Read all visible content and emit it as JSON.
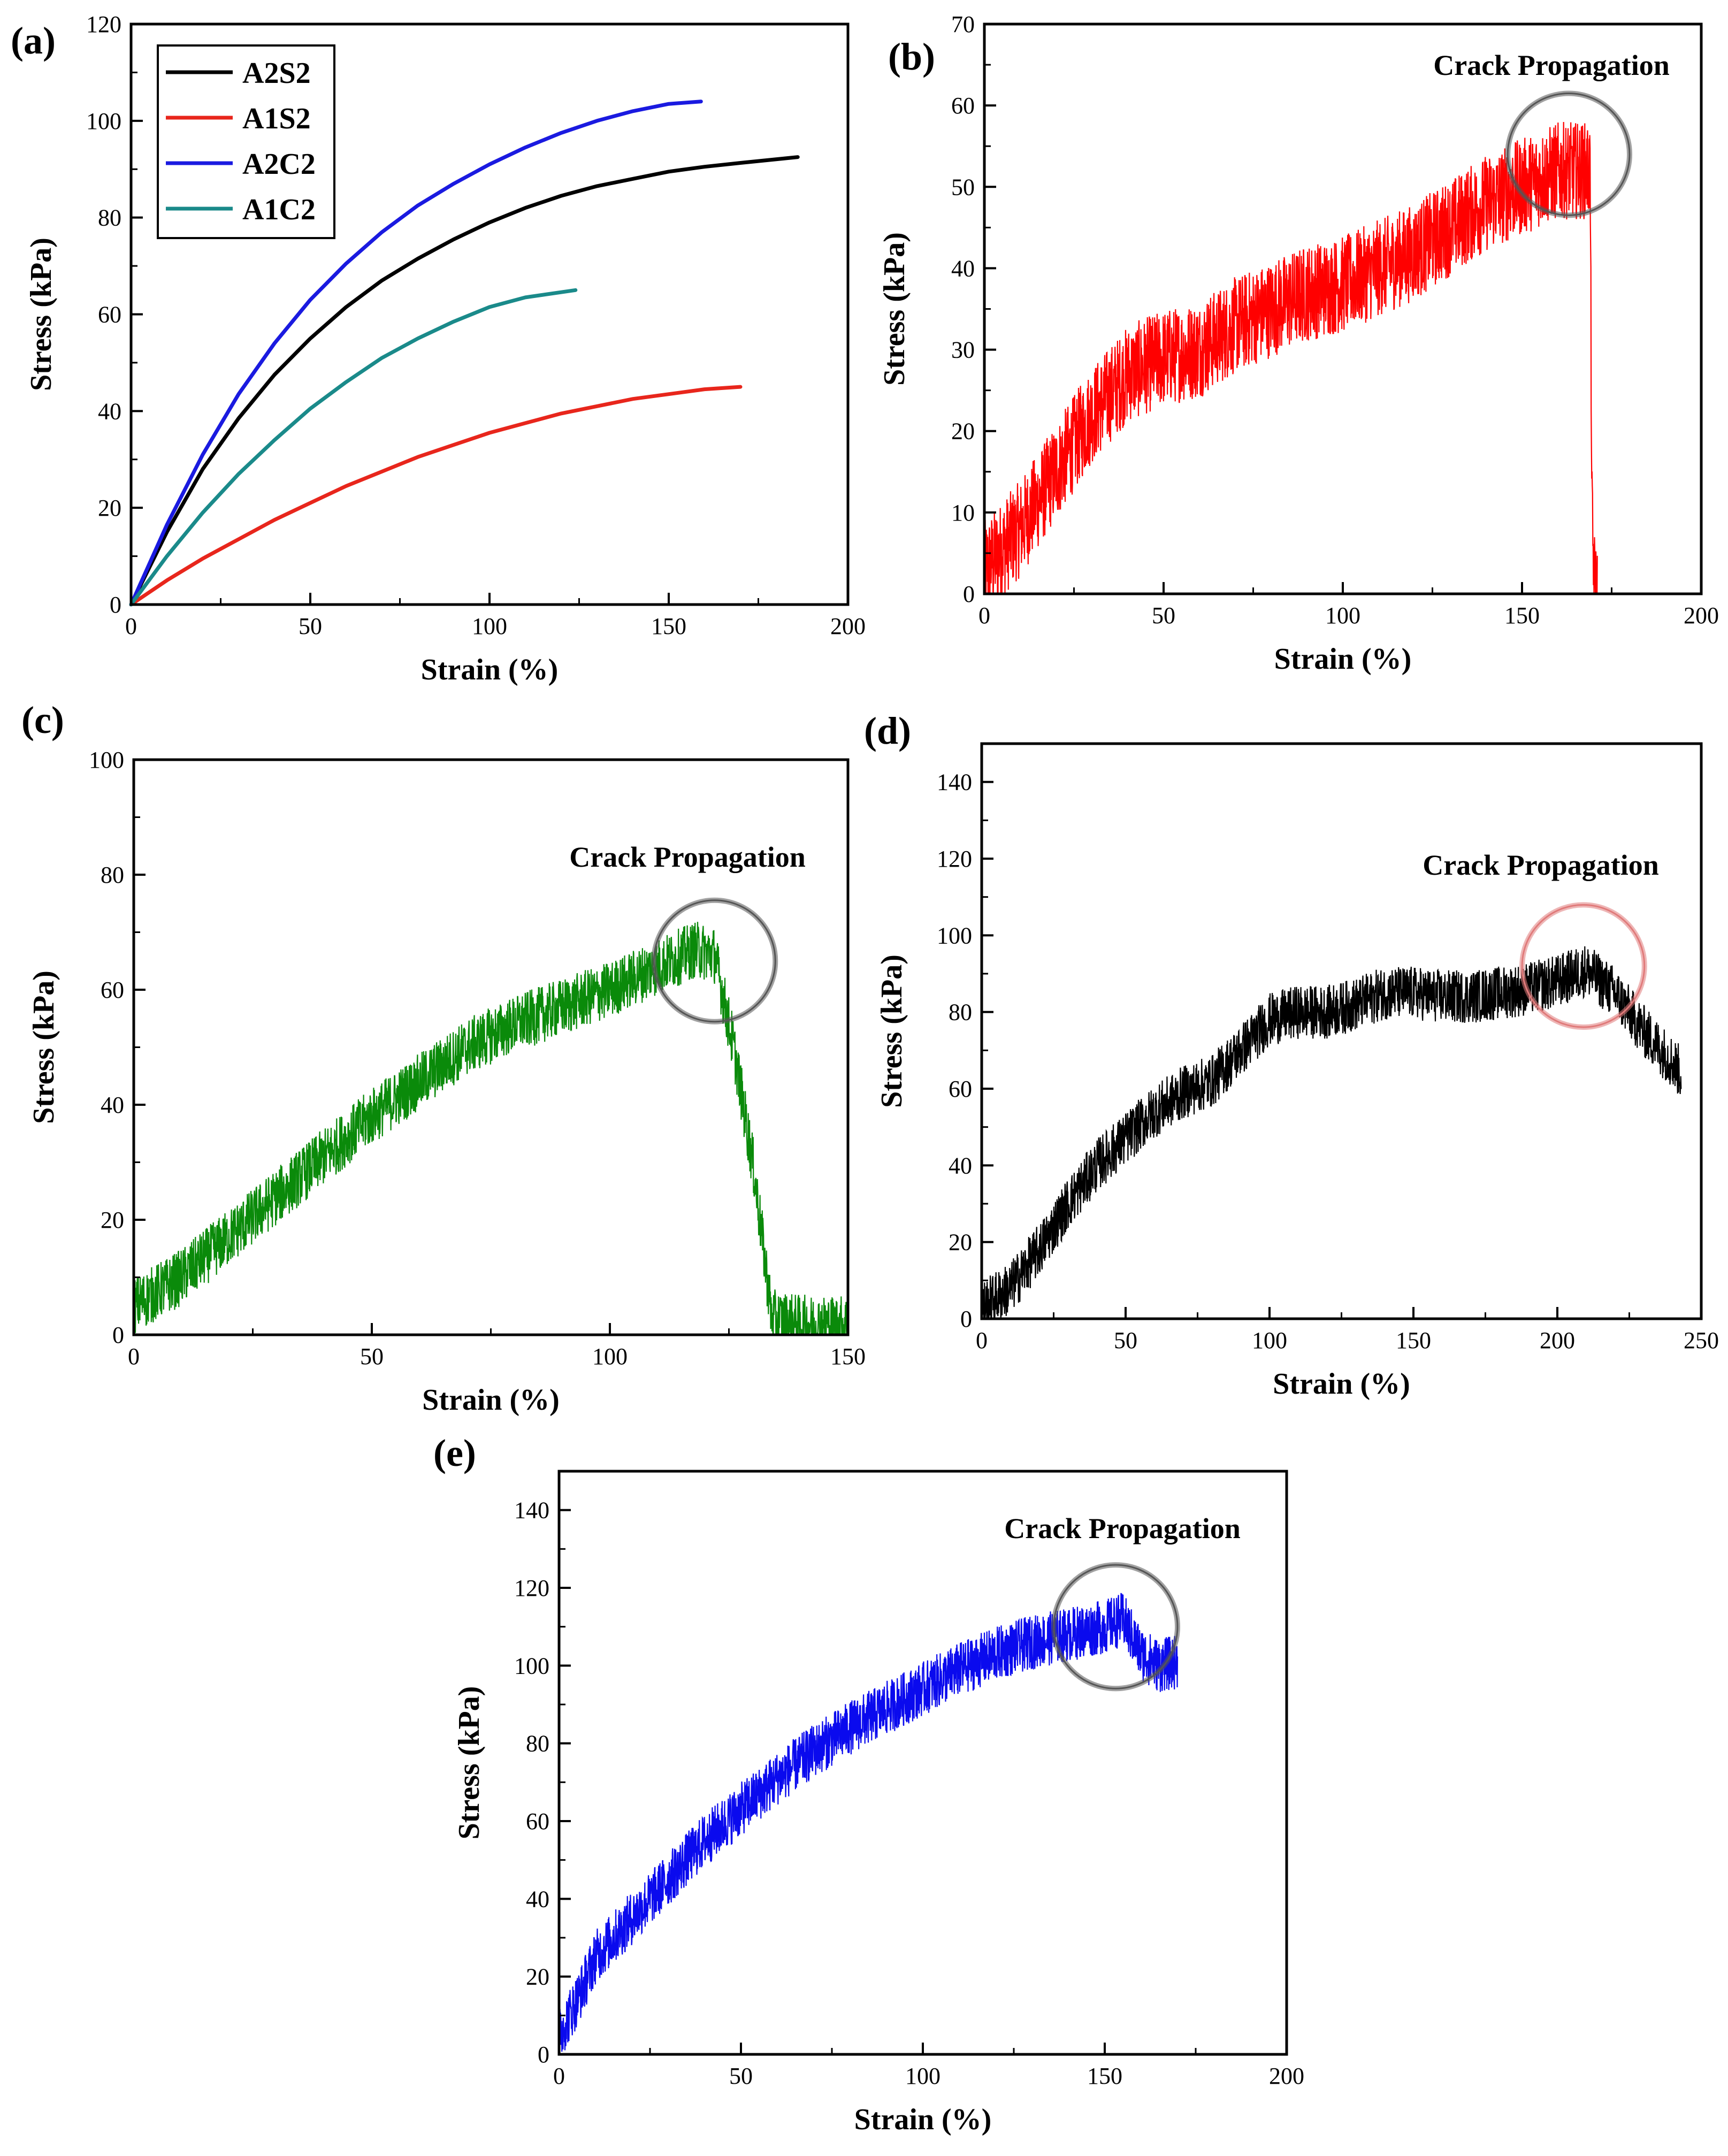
{
  "charts": [
    {
      "id": "a",
      "panel_label": "(a)",
      "type": "line",
      "xlabel": "Strain (%)",
      "ylabel": "Stress (kPa)",
      "xlim": [
        0,
        200
      ],
      "ylim": [
        0,
        120
      ],
      "xticks": [
        0,
        50,
        100,
        150,
        200
      ],
      "yticks": [
        0,
        20,
        40,
        60,
        80,
        100,
        120
      ],
      "legend": "top-left",
      "series": [
        {
          "name": "A2S2",
          "color": "#000000",
          "x": [
            0,
            10,
            20,
            30,
            40,
            50,
            60,
            70,
            80,
            90,
            100,
            110,
            120,
            130,
            140,
            150,
            160,
            170,
            186
          ],
          "y": [
            0,
            15,
            28,
            38.5,
            47.5,
            55,
            61.5,
            67,
            71.5,
            75.5,
            79,
            82,
            84.5,
            86.5,
            88,
            89.5,
            90.5,
            91.3,
            92.5
          ]
        },
        {
          "name": "A1S2",
          "color": "#e8261c",
          "x": [
            0,
            10,
            20,
            30,
            40,
            50,
            60,
            70,
            80,
            90,
            100,
            110,
            120,
            130,
            140,
            150,
            160,
            170
          ],
          "y": [
            0,
            5,
            9.5,
            13.5,
            17.5,
            21,
            24.5,
            27.5,
            30.5,
            33,
            35.5,
            37.5,
            39.5,
            41,
            42.5,
            43.5,
            44.5,
            45
          ]
        },
        {
          "name": "A2C2",
          "color": "#1a1ae0",
          "x": [
            0,
            10,
            20,
            30,
            40,
            50,
            60,
            70,
            80,
            90,
            100,
            110,
            120,
            130,
            140,
            150,
            159
          ],
          "y": [
            0,
            16.5,
            31,
            43.5,
            54,
            63,
            70.5,
            77,
            82.5,
            87,
            91,
            94.5,
            97.5,
            100,
            102,
            103.5,
            104
          ]
        },
        {
          "name": "A1C2",
          "color": "#1a8a8a",
          "x": [
            0,
            10,
            20,
            30,
            40,
            50,
            60,
            70,
            80,
            90,
            100,
            110,
            124
          ],
          "y": [
            0,
            10,
            19,
            27,
            34,
            40.5,
            46,
            51,
            55,
            58.5,
            61.5,
            63.5,
            65
          ]
        }
      ]
    },
    {
      "id": "b",
      "panel_label": "(b)",
      "type": "line",
      "xlabel": "Strain (%)",
      "ylabel": "Stress (kPa)",
      "xlim": [
        0,
        200
      ],
      "ylim": [
        0,
        70
      ],
      "xticks": [
        0,
        50,
        100,
        150,
        200
      ],
      "yticks": [
        0,
        10,
        20,
        30,
        40,
        50,
        60,
        70
      ],
      "annotation": "Crack Propagation",
      "series": [
        {
          "color": "#ff0000",
          "noise": 6,
          "x": [
            0,
            10,
            20,
            30,
            40,
            50,
            60,
            70,
            80,
            90,
            100,
            110,
            120,
            130,
            140,
            150,
            160,
            169,
            169.5,
            170,
            171
          ],
          "y": [
            3,
            8,
            15,
            22,
            27,
            29,
            30,
            33,
            35,
            37,
            38,
            40,
            42,
            45,
            48,
            50,
            52,
            52,
            10,
            2,
            0
          ]
        }
      ],
      "circle": {
        "x": 163,
        "y": 54,
        "color": "#555555"
      }
    },
    {
      "id": "c",
      "panel_label": "(c)",
      "type": "line",
      "xlabel": "Strain (%)",
      "ylabel": "Stress (kPa)",
      "xlim": [
        0,
        150
      ],
      "ylim": [
        0,
        100
      ],
      "xticks": [
        0,
        50,
        100,
        150
      ],
      "yticks": [
        0,
        20,
        40,
        60,
        80,
        100
      ],
      "annotation": "Crack Propagation",
      "series": [
        {
          "color": "#0a8a0a",
          "noise": 5,
          "x": [
            0,
            10,
            20,
            30,
            40,
            50,
            60,
            70,
            80,
            90,
            100,
            110,
            118,
            122,
            126,
            130,
            133,
            134,
            140,
            150
          ],
          "y": [
            5,
            10,
            17,
            24,
            31,
            38,
            44,
            50,
            54,
            57,
            60,
            64,
            67,
            66,
            50,
            30,
            10,
            3,
            2,
            2
          ]
        }
      ],
      "circle": {
        "x": 122,
        "y": 65,
        "color": "#555555"
      }
    },
    {
      "id": "d",
      "panel_label": "(d)",
      "type": "line",
      "xlabel": "Strain (%)",
      "ylabel": "Stress (kPa)",
      "xlim": [
        0,
        250
      ],
      "ylim": [
        0,
        150
      ],
      "xticks": [
        0,
        50,
        100,
        150,
        200,
        250
      ],
      "yticks": [
        0,
        20,
        40,
        60,
        80,
        100,
        120,
        140
      ],
      "annotation": "Crack Propagation",
      "series": [
        {
          "color": "#000000",
          "noise": 7,
          "x": [
            0,
            10,
            20,
            30,
            40,
            50,
            60,
            70,
            80,
            90,
            100,
            110,
            120,
            130,
            140,
            150,
            160,
            170,
            180,
            190,
            200,
            210,
            220,
            230,
            240,
            243
          ],
          "y": [
            3,
            8,
            18,
            30,
            40,
            47,
            54,
            59,
            62,
            70,
            78,
            80,
            80,
            82,
            85,
            85,
            84,
            84,
            85,
            86,
            88,
            91,
            85,
            75,
            67,
            64
          ]
        }
      ],
      "circle": {
        "x": 209,
        "y": 92,
        "color": "#e07a7a"
      }
    },
    {
      "id": "e",
      "panel_label": "(e)",
      "type": "line",
      "xlabel": "Strain (%)",
      "ylabel": "Stress (kPa)",
      "xlim": [
        0,
        200
      ],
      "ylim": [
        0,
        150
      ],
      "xticks": [
        0,
        50,
        100,
        150,
        200
      ],
      "yticks": [
        0,
        20,
        40,
        60,
        80,
        100,
        120,
        140
      ],
      "annotation": "Crack Propagation",
      "series": [
        {
          "color": "#0a0aee",
          "noise": 7,
          "x": [
            0,
            5,
            10,
            20,
            30,
            40,
            50,
            60,
            70,
            80,
            90,
            100,
            110,
            120,
            130,
            140,
            150,
            155,
            160,
            165,
            170
          ],
          "y": [
            5,
            14,
            25,
            35,
            45,
            55,
            63,
            71,
            78,
            84,
            89,
            94,
            99,
            103,
            106,
            108,
            110,
            112,
            103,
            100,
            101
          ]
        }
      ],
      "circle": {
        "x": 153,
        "y": 110,
        "color": "#555555"
      }
    }
  ]
}
